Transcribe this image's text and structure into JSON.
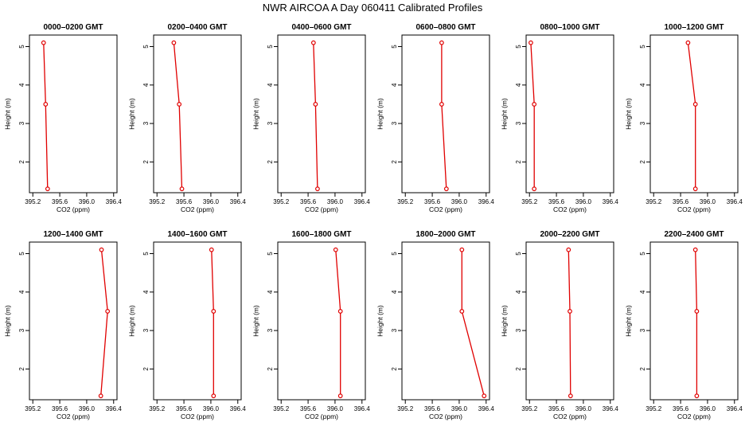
{
  "title": "NWR AIRCOA A  Day 060411  Calibrated Profiles",
  "colors": {
    "series": "#e00000",
    "axis": "#000000"
  },
  "chart_data": [
    {
      "type": "line",
      "title": "0000–0200 GMT",
      "xlabel": "CO2 (ppm)",
      "ylabel": "Height (m)",
      "xlim": [
        395.15,
        396.45
      ],
      "ylim": [
        1.2,
        5.3
      ],
      "xticks": [
        "395.2",
        "395.6",
        "396.0",
        "396.4"
      ],
      "yticks": [
        "2",
        "3",
        "4",
        "5"
      ],
      "grid": false,
      "series": [
        {
          "x": [
            395.36,
            395.39,
            395.42
          ],
          "y": [
            5.1,
            3.5,
            1.3
          ]
        }
      ]
    },
    {
      "type": "line",
      "title": "0200–0400 GMT",
      "xlabel": "CO2 (ppm)",
      "ylabel": "Height (m)",
      "xlim": [
        395.15,
        396.45
      ],
      "ylim": [
        1.2,
        5.3
      ],
      "xticks": [
        "395.2",
        "395.6",
        "396.0",
        "396.4"
      ],
      "yticks": [
        "2",
        "3",
        "4",
        "5"
      ],
      "grid": false,
      "series": [
        {
          "x": [
            395.45,
            395.53,
            395.57
          ],
          "y": [
            5.1,
            3.5,
            1.3
          ]
        }
      ]
    },
    {
      "type": "line",
      "title": "0400–0600 GMT",
      "xlabel": "CO2 (ppm)",
      "ylabel": "Height (m)",
      "xlim": [
        395.15,
        396.45
      ],
      "ylim": [
        1.2,
        5.3
      ],
      "xticks": [
        "395.2",
        "395.6",
        "396.0",
        "396.4"
      ],
      "yticks": [
        "2",
        "3",
        "4",
        "5"
      ],
      "grid": false,
      "series": [
        {
          "x": [
            395.68,
            395.71,
            395.74
          ],
          "y": [
            5.1,
            3.5,
            1.3
          ]
        }
      ]
    },
    {
      "type": "line",
      "title": "0600–0800 GMT",
      "xlabel": "CO2 (ppm)",
      "ylabel": "Height (m)",
      "xlim": [
        395.15,
        396.45
      ],
      "ylim": [
        1.2,
        5.3
      ],
      "xticks": [
        "395.2",
        "395.6",
        "396.0",
        "396.4"
      ],
      "yticks": [
        "2",
        "3",
        "4",
        "5"
      ],
      "grid": false,
      "series": [
        {
          "x": [
            395.74,
            395.74,
            395.81
          ],
          "y": [
            5.1,
            3.5,
            1.3
          ]
        }
      ]
    },
    {
      "type": "line",
      "title": "0800–1000 GMT",
      "xlabel": "CO2 (ppm)",
      "ylabel": "Height (m)",
      "xlim": [
        395.15,
        396.45
      ],
      "ylim": [
        1.2,
        5.3
      ],
      "xticks": [
        "395.2",
        "395.6",
        "396.0",
        "396.4"
      ],
      "yticks": [
        "2",
        "3",
        "4",
        "5"
      ],
      "grid": false,
      "series": [
        {
          "x": [
            395.22,
            395.27,
            395.27
          ],
          "y": [
            5.1,
            3.5,
            1.3
          ]
        }
      ]
    },
    {
      "type": "line",
      "title": "1000–1200 GMT",
      "xlabel": "CO2 (ppm)",
      "ylabel": "Height (m)",
      "xlim": [
        395.15,
        396.45
      ],
      "ylim": [
        1.2,
        5.3
      ],
      "xticks": [
        "395.2",
        "395.6",
        "396.0",
        "396.4"
      ],
      "yticks": [
        "2",
        "3",
        "4",
        "5"
      ],
      "grid": false,
      "series": [
        {
          "x": [
            395.71,
            395.82,
            395.82
          ],
          "y": [
            5.1,
            3.5,
            1.3
          ]
        }
      ]
    },
    {
      "type": "line",
      "title": "1200–1400 GMT",
      "xlabel": "CO2 (ppm)",
      "ylabel": "Height (m)",
      "xlim": [
        395.15,
        396.45
      ],
      "ylim": [
        1.2,
        5.3
      ],
      "xticks": [
        "395.2",
        "395.6",
        "396.0",
        "396.4"
      ],
      "yticks": [
        "2",
        "3",
        "4",
        "5"
      ],
      "grid": false,
      "series": [
        {
          "x": [
            396.22,
            396.31,
            396.21
          ],
          "y": [
            5.1,
            3.5,
            1.3
          ]
        }
      ]
    },
    {
      "type": "line",
      "title": "1400–1600 GMT",
      "xlabel": "CO2 (ppm)",
      "ylabel": "Height (m)",
      "xlim": [
        395.15,
        396.45
      ],
      "ylim": [
        1.2,
        5.3
      ],
      "xticks": [
        "395.2",
        "395.6",
        "396.0",
        "396.4"
      ],
      "yticks": [
        "2",
        "3",
        "4",
        "5"
      ],
      "grid": false,
      "series": [
        {
          "x": [
            396.01,
            396.04,
            396.04
          ],
          "y": [
            5.1,
            3.5,
            1.3
          ]
        }
      ]
    },
    {
      "type": "line",
      "title": "1600–1800 GMT",
      "xlabel": "CO2 (ppm)",
      "ylabel": "Height (m)",
      "xlim": [
        395.15,
        396.45
      ],
      "ylim": [
        1.2,
        5.3
      ],
      "xticks": [
        "395.2",
        "395.6",
        "396.0",
        "396.4"
      ],
      "yticks": [
        "2",
        "3",
        "4",
        "5"
      ],
      "grid": false,
      "series": [
        {
          "x": [
            396.01,
            396.08,
            396.08
          ],
          "y": [
            5.1,
            3.5,
            1.3
          ]
        }
      ]
    },
    {
      "type": "line",
      "title": "1800–2000 GMT",
      "xlabel": "CO2 (ppm)",
      "ylabel": "Height (m)",
      "xlim": [
        395.15,
        396.45
      ],
      "ylim": [
        1.2,
        5.3
      ],
      "xticks": [
        "395.2",
        "395.6",
        "396.0",
        "396.4"
      ],
      "yticks": [
        "2",
        "3",
        "4",
        "5"
      ],
      "grid": false,
      "series": [
        {
          "x": [
            396.04,
            396.04,
            396.37
          ],
          "y": [
            5.1,
            3.5,
            1.3
          ]
        }
      ]
    },
    {
      "type": "line",
      "title": "2000–2200 GMT",
      "xlabel": "CO2 (ppm)",
      "ylabel": "Height (m)",
      "xlim": [
        395.15,
        396.45
      ],
      "ylim": [
        1.2,
        5.3
      ],
      "xticks": [
        "395.2",
        "395.6",
        "396.0",
        "396.4"
      ],
      "yticks": [
        "2",
        "3",
        "4",
        "5"
      ],
      "grid": false,
      "series": [
        {
          "x": [
            395.78,
            395.8,
            395.81
          ],
          "y": [
            5.1,
            3.5,
            1.3
          ]
        }
      ]
    },
    {
      "type": "line",
      "title": "2200–2400 GMT",
      "xlabel": "CO2 (ppm)",
      "ylabel": "Height (m)",
      "xlim": [
        395.15,
        396.45
      ],
      "ylim": [
        1.2,
        5.3
      ],
      "xticks": [
        "395.2",
        "395.6",
        "396.0",
        "396.4"
      ],
      "yticks": [
        "2",
        "3",
        "4",
        "5"
      ],
      "grid": false,
      "series": [
        {
          "x": [
            395.82,
            395.84,
            395.84
          ],
          "y": [
            5.1,
            3.5,
            1.3
          ]
        }
      ]
    }
  ]
}
